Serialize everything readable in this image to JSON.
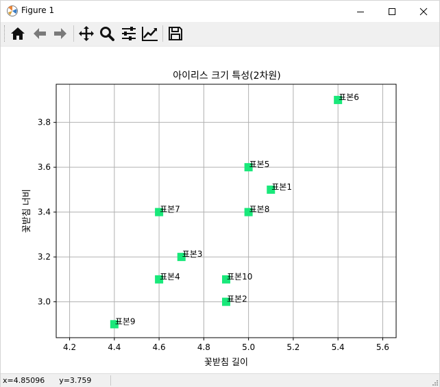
{
  "window": {
    "title": "Figure 1"
  },
  "toolbar": {
    "buttons": [
      {
        "icon": "home-icon",
        "tooltip": "Home"
      },
      {
        "icon": "back-arrow-icon",
        "tooltip": "Back"
      },
      {
        "icon": "forward-arrow-icon",
        "tooltip": "Forward"
      },
      {
        "icon": "pan-icon",
        "tooltip": "Pan"
      },
      {
        "icon": "zoom-icon",
        "tooltip": "Zoom"
      },
      {
        "icon": "subplots-icon",
        "tooltip": "Subplots"
      },
      {
        "icon": "edit-axes-icon",
        "tooltip": "Customize"
      },
      {
        "icon": "save-icon",
        "tooltip": "Save"
      }
    ]
  },
  "status": {
    "coords": "x=4.85096      y=3.759"
  },
  "chart_data": {
    "type": "scatter",
    "title": "아이리스 크기 특성(2차원)",
    "xlabel": "꽃받침 길이",
    "ylabel": "꽃받침 너비",
    "xlim": [
      4.14,
      5.66
    ],
    "ylim": [
      2.84,
      3.97
    ],
    "xticks": [
      "4.2",
      "4.4",
      "4.6",
      "4.8",
      "5.0",
      "5.2",
      "5.4",
      "5.6"
    ],
    "yticks": [
      "3.0",
      "3.2",
      "3.4",
      "3.6",
      "3.8"
    ],
    "grid": true,
    "marker": "square",
    "color": "#19e87a",
    "points": [
      {
        "label": "표본1",
        "x": 5.1,
        "y": 3.5
      },
      {
        "label": "표본2",
        "x": 4.9,
        "y": 3.0
      },
      {
        "label": "표본3",
        "x": 4.7,
        "y": 3.2
      },
      {
        "label": "표본4",
        "x": 4.6,
        "y": 3.1
      },
      {
        "label": "표본5",
        "x": 5.0,
        "y": 3.6
      },
      {
        "label": "표본6",
        "x": 5.4,
        "y": 3.9
      },
      {
        "label": "표본7",
        "x": 4.6,
        "y": 3.4
      },
      {
        "label": "표본8",
        "x": 5.0,
        "y": 3.4
      },
      {
        "label": "표본9",
        "x": 4.4,
        "y": 2.9
      },
      {
        "label": "표본10",
        "x": 4.9,
        "y": 3.1
      }
    ]
  }
}
